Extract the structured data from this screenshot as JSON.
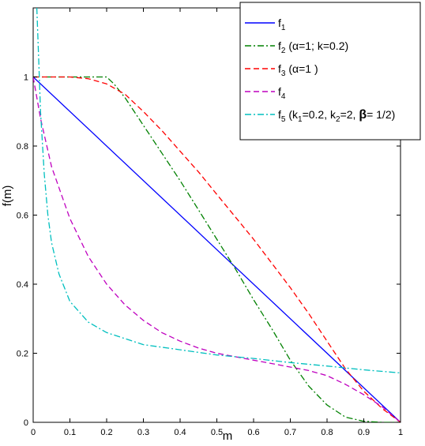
{
  "chart_data": {
    "type": "line",
    "xlabel": "m",
    "ylabel": "f(m)",
    "xlim": [
      0,
      1
    ],
    "ylim": [
      0,
      1.2
    ],
    "xticks": [
      "0",
      "0.1",
      "0.2",
      "0.3",
      "0.4",
      "0.5",
      "0.6",
      "0.7",
      "0.8",
      "0.9",
      "1"
    ],
    "yticks": [
      "0",
      "0.2",
      "0.4",
      "0.6",
      "0.8",
      "1"
    ],
    "grid": false,
    "legend_position": "top-right",
    "series": [
      {
        "id": "f1",
        "name": "f",
        "sub": "1",
        "param": "",
        "color": "#0000ff",
        "style": "solid",
        "points": [
          [
            0,
            1
          ],
          [
            1,
            0
          ]
        ]
      },
      {
        "id": "f2",
        "name": "f",
        "sub": "2",
        "param": "  (α=1; k=0.2)",
        "color": "#008000",
        "style": "dashdot",
        "points": [
          [
            0,
            1
          ],
          [
            0.1,
            1
          ],
          [
            0.2,
            1
          ],
          [
            0.22,
            0.98
          ],
          [
            0.25,
            0.94
          ],
          [
            0.3,
            0.86
          ],
          [
            0.35,
            0.78
          ],
          [
            0.4,
            0.7
          ],
          [
            0.45,
            0.615
          ],
          [
            0.5,
            0.53
          ],
          [
            0.55,
            0.445
          ],
          [
            0.6,
            0.355
          ],
          [
            0.65,
            0.27
          ],
          [
            0.7,
            0.18
          ],
          [
            0.75,
            0.105
          ],
          [
            0.8,
            0.05
          ],
          [
            0.85,
            0.015
          ],
          [
            0.9,
            0.003
          ],
          [
            0.95,
            0
          ],
          [
            1,
            0
          ]
        ]
      },
      {
        "id": "f3",
        "name": "f",
        "sub": "3",
        "param": " (α=1 )",
        "color": "#ff0000",
        "style": "dashed",
        "points": [
          [
            0,
            1
          ],
          [
            0.1,
            1
          ],
          [
            0.15,
            0.995
          ],
          [
            0.2,
            0.98
          ],
          [
            0.25,
            0.95
          ],
          [
            0.3,
            0.9
          ],
          [
            0.35,
            0.845
          ],
          [
            0.4,
            0.785
          ],
          [
            0.45,
            0.725
          ],
          [
            0.5,
            0.66
          ],
          [
            0.55,
            0.595
          ],
          [
            0.6,
            0.53
          ],
          [
            0.65,
            0.46
          ],
          [
            0.7,
            0.39
          ],
          [
            0.75,
            0.315
          ],
          [
            0.8,
            0.235
          ],
          [
            0.85,
            0.155
          ],
          [
            0.9,
            0.09
          ],
          [
            0.95,
            0.04
          ],
          [
            1,
            0
          ]
        ]
      },
      {
        "id": "f4",
        "name": "f",
        "sub": "4",
        "param": "",
        "color": "#bf00bf",
        "style": "dashed",
        "points": [
          [
            0,
            1
          ],
          [
            0.02,
            0.88
          ],
          [
            0.05,
            0.74
          ],
          [
            0.1,
            0.59
          ],
          [
            0.15,
            0.48
          ],
          [
            0.2,
            0.4
          ],
          [
            0.25,
            0.34
          ],
          [
            0.3,
            0.295
          ],
          [
            0.35,
            0.26
          ],
          [
            0.4,
            0.235
          ],
          [
            0.45,
            0.215
          ],
          [
            0.5,
            0.2
          ],
          [
            0.55,
            0.19
          ],
          [
            0.6,
            0.18
          ],
          [
            0.65,
            0.17
          ],
          [
            0.7,
            0.16
          ],
          [
            0.75,
            0.15
          ],
          [
            0.8,
            0.135
          ],
          [
            0.85,
            0.11
          ],
          [
            0.9,
            0.08
          ],
          [
            0.95,
            0.045
          ],
          [
            1,
            0
          ]
        ]
      },
      {
        "id": "f5",
        "name": "f",
        "sub": "5",
        "param": "",
        "color": "#00bfbf",
        "style": "dashdot",
        "legend_parts": [
          " (k",
          "1",
          "=0.2, k",
          "2",
          "=2, ",
          "β",
          "= 1/2)"
        ],
        "points": [
          [
            0.01,
            1.2
          ],
          [
            0.015,
            1.05
          ],
          [
            0.02,
            0.9
          ],
          [
            0.03,
            0.72
          ],
          [
            0.04,
            0.6
          ],
          [
            0.05,
            0.52
          ],
          [
            0.07,
            0.43
          ],
          [
            0.1,
            0.35
          ],
          [
            0.15,
            0.29
          ],
          [
            0.2,
            0.26
          ],
          [
            0.3,
            0.225
          ],
          [
            0.4,
            0.21
          ],
          [
            0.5,
            0.195
          ],
          [
            0.6,
            0.185
          ],
          [
            0.7,
            0.173
          ],
          [
            0.8,
            0.163
          ],
          [
            0.9,
            0.152
          ],
          [
            1,
            0.143
          ]
        ]
      }
    ]
  }
}
